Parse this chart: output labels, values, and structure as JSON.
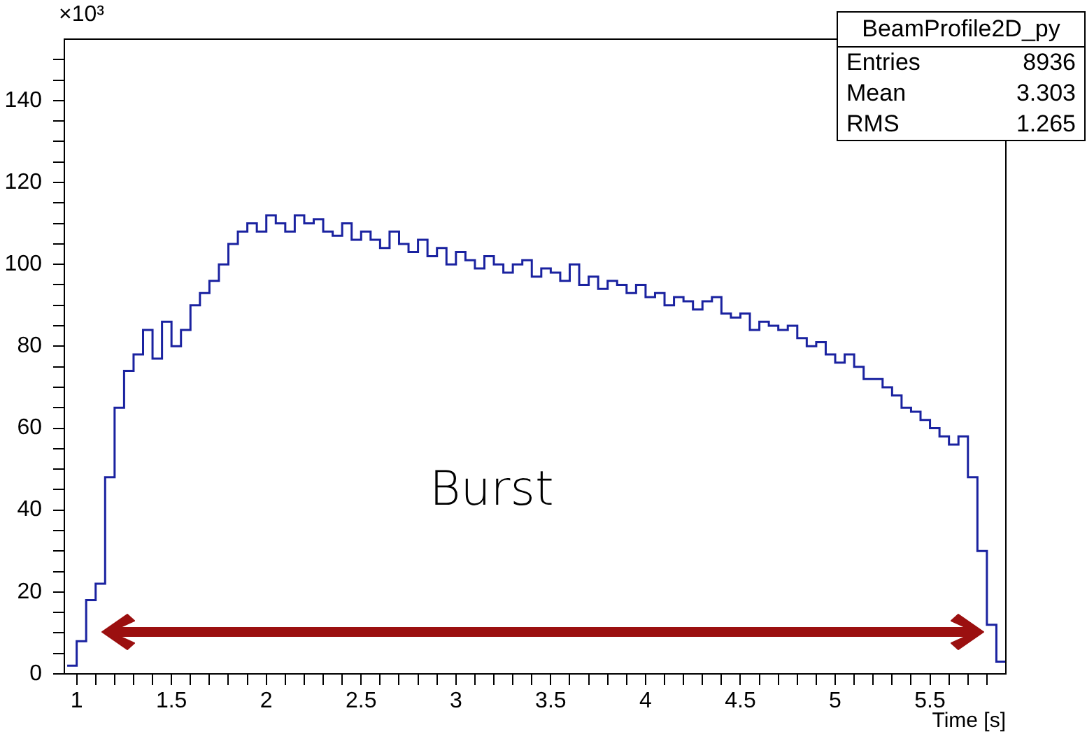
{
  "chart_data": {
    "type": "histogram",
    "xlabel": "Time [s]",
    "ylabel": "×10³",
    "color": "#1a22a0",
    "annotations": [
      "Burst",
      "BeamProfile2D_py",
      "Entries",
      "8936",
      "Mean",
      "3.303",
      "RMS",
      "1.265"
    ],
    "bins": [
      0.95,
      1.0,
      1.05,
      1.1,
      1.15,
      1.2,
      1.25,
      1.3,
      1.35,
      1.4,
      1.45,
      1.5,
      1.55,
      1.6,
      1.65,
      1.7,
      1.75,
      1.8,
      1.85,
      1.9,
      1.95,
      2.0,
      2.05,
      2.1,
      2.15,
      2.2,
      2.25,
      2.3,
      2.35,
      2.4,
      2.45,
      2.5,
      2.55,
      2.6,
      2.65,
      2.7,
      2.75,
      2.8,
      2.85,
      2.9,
      2.95,
      3.0,
      3.05,
      3.1,
      3.15,
      3.2,
      3.25,
      3.3,
      3.35,
      3.4,
      3.45,
      3.5,
      3.55,
      3.6,
      3.65,
      3.7,
      3.75,
      3.8,
      3.85,
      3.9,
      3.95,
      4.0,
      4.05,
      4.1,
      4.15,
      4.2,
      4.25,
      4.3,
      4.35,
      4.4,
      4.45,
      4.5,
      4.55,
      4.6,
      4.65,
      4.7,
      4.75,
      4.8,
      4.85,
      4.9,
      4.95,
      5.0,
      5.05,
      5.1,
      5.15,
      5.2,
      5.25,
      5.3,
      5.35,
      5.4,
      5.45,
      5.5,
      5.55,
      5.6,
      5.65,
      5.7,
      5.75,
      5.8,
      5.85,
      5.9
    ],
    "values": [
      2,
      8,
      18,
      22,
      48,
      65,
      74,
      78,
      84,
      77,
      86,
      80,
      84,
      90,
      93,
      96,
      100,
      105,
      108,
      110,
      108,
      112,
      110,
      108,
      112,
      110,
      111,
      108,
      107,
      110,
      106,
      108,
      106,
      104,
      108,
      105,
      103,
      106,
      102,
      104,
      100,
      103,
      101,
      99,
      102,
      100,
      98,
      100,
      101,
      97,
      99,
      98,
      96,
      100,
      95,
      97,
      94,
      96,
      95,
      93,
      95,
      92,
      93,
      90,
      92,
      91,
      89,
      91,
      92,
      88,
      87,
      88,
      84,
      86,
      85,
      84,
      85,
      82,
      80,
      81,
      78,
      76,
      78,
      75,
      72,
      72,
      70,
      68,
      65,
      64,
      62,
      60,
      58,
      56,
      58,
      48,
      30,
      12,
      3
    ],
    "xlim": [
      0.935,
      5.9
    ],
    "ylim": [
      0,
      155
    ],
    "xticks": [
      {
        "value": 1,
        "label": "1"
      },
      {
        "value": 1.1,
        "label": null
      },
      {
        "value": 1.2,
        "label": null
      },
      {
        "value": 1.3,
        "label": null
      },
      {
        "value": 1.4,
        "label": null
      },
      {
        "value": 1.5,
        "label": "1.5"
      },
      {
        "value": 1.6,
        "label": null
      },
      {
        "value": 1.7,
        "label": null
      },
      {
        "value": 1.8,
        "label": null
      },
      {
        "value": 1.9,
        "label": null
      },
      {
        "value": 2,
        "label": "2"
      },
      {
        "value": 2.1,
        "label": null
      },
      {
        "value": 2.2,
        "label": null
      },
      {
        "value": 2.3,
        "label": null
      },
      {
        "value": 2.4,
        "label": null
      },
      {
        "value": 2.5,
        "label": "2.5"
      },
      {
        "value": 2.6,
        "label": null
      },
      {
        "value": 2.7,
        "label": null
      },
      {
        "value": 2.8,
        "label": null
      },
      {
        "value": 2.9,
        "label": null
      },
      {
        "value": 3,
        "label": "3"
      },
      {
        "value": 3.1,
        "label": null
      },
      {
        "value": 3.2,
        "label": null
      },
      {
        "value": 3.3,
        "label": null
      },
      {
        "value": 3.4,
        "label": null
      },
      {
        "value": 3.5,
        "label": "3.5"
      },
      {
        "value": 3.6,
        "label": null
      },
      {
        "value": 3.7,
        "label": null
      },
      {
        "value": 3.8,
        "label": null
      },
      {
        "value": 3.9,
        "label": null
      },
      {
        "value": 4,
        "label": "4"
      },
      {
        "value": 4.1,
        "label": null
      },
      {
        "value": 4.2,
        "label": null
      },
      {
        "value": 4.3,
        "label": null
      },
      {
        "value": 4.4,
        "label": null
      },
      {
        "value": 4.5,
        "label": "4.5"
      },
      {
        "value": 4.6,
        "label": null
      },
      {
        "value": 4.7,
        "label": null
      },
      {
        "value": 4.8,
        "label": null
      },
      {
        "value": 4.9,
        "label": null
      },
      {
        "value": 5,
        "label": "5"
      },
      {
        "value": 5.1,
        "label": null
      },
      {
        "value": 5.2,
        "label": null
      },
      {
        "value": 5.3,
        "label": null
      },
      {
        "value": 5.4,
        "label": null
      },
      {
        "value": 5.5,
        "label": "5.5"
      },
      {
        "value": 5.6,
        "label": null
      },
      {
        "value": 5.7,
        "label": null
      },
      {
        "value": 5.8,
        "label": null
      }
    ],
    "yticks": [
      0,
      {
        "value": 5,
        "label": null
      },
      {
        "value": 10,
        "label": null
      },
      {
        "value": 15,
        "label": null
      },
      20,
      {
        "value": 25,
        "label": null
      },
      {
        "value": 30,
        "label": null
      },
      {
        "value": 35,
        "label": null
      },
      40,
      {
        "value": 45,
        "label": null
      },
      {
        "value": 50,
        "label": null
      },
      {
        "value": 55,
        "label": null
      },
      60,
      {
        "value": 65,
        "label": null
      },
      {
        "value": 70,
        "label": null
      },
      {
        "value": 75,
        "label": null
      },
      80,
      {
        "value": 85,
        "label": null
      },
      {
        "value": 90,
        "label": null
      },
      {
        "value": 95,
        "label": null
      },
      100,
      {
        "value": 105,
        "label": null
      },
      {
        "value": 110,
        "label": null
      },
      {
        "value": 115,
        "label": null
      },
      120,
      {
        "value": 125,
        "label": null
      },
      {
        "value": 130,
        "label": null
      },
      {
        "value": 135,
        "label": null
      },
      140,
      {
        "value": 145,
        "label": null
      },
      {
        "value": 150,
        "label": null
      }
    ],
    "grid": false,
    "legend": false
  }
}
